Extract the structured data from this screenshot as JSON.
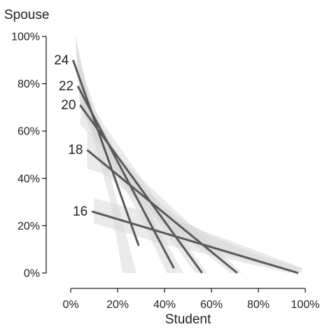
{
  "chart_data": {
    "type": "line",
    "title": "",
    "xlabel": "Student",
    "ylabel": "Spouse",
    "xlim": [
      0,
      100
    ],
    "ylim": [
      0,
      100
    ],
    "x_ticks": [
      "0%",
      "20%",
      "40%",
      "60%",
      "80%",
      "100%"
    ],
    "y_ticks": [
      "0%",
      "20%",
      "40%",
      "60%",
      "80%",
      "100%"
    ],
    "grid": false,
    "legend": "none",
    "series": [
      {
        "name": "24",
        "x": [
          1,
          29
        ],
        "y": [
          90,
          11.5
        ],
        "band": [
          [
            2,
            100
          ],
          [
            9,
            70
          ],
          [
            28,
            0
          ],
          [
            22,
            0
          ],
          [
            17,
            30
          ],
          [
            10,
            55
          ],
          [
            3,
            82
          ]
        ]
      },
      {
        "name": "22",
        "x": [
          3,
          44
        ],
        "y": [
          79,
          2
        ],
        "band": [
          [
            4,
            88
          ],
          [
            13,
            62
          ],
          [
            48,
            0
          ],
          [
            41,
            0
          ],
          [
            29,
            25
          ],
          [
            12,
            55
          ],
          [
            4,
            70
          ]
        ]
      },
      {
        "name": "20",
        "x": [
          4,
          56
        ],
        "y": [
          71,
          0
        ],
        "band": [
          [
            5,
            77
          ],
          [
            14,
            63
          ],
          [
            58,
            0
          ],
          [
            53,
            0
          ],
          [
            37,
            22
          ],
          [
            14,
            52
          ],
          [
            4,
            63
          ]
        ]
      },
      {
        "name": "18",
        "x": [
          7,
          71
        ],
        "y": [
          52,
          0
        ],
        "band": [
          [
            7,
            60
          ],
          [
            14,
            55
          ],
          [
            73,
            0
          ],
          [
            68,
            0
          ],
          [
            40,
            22
          ],
          [
            14,
            42
          ],
          [
            7,
            44
          ]
        ]
      },
      {
        "name": "16",
        "x": [
          9,
          97
        ],
        "y": [
          26,
          0
        ],
        "band": [
          [
            10,
            31.5
          ],
          [
            40,
            24
          ],
          [
            99,
            2
          ],
          [
            93,
            0
          ],
          [
            40,
            12
          ],
          [
            10,
            21
          ]
        ]
      }
    ],
    "curve_band": [
      [
        2,
        100
      ],
      [
        7,
        76
      ],
      [
        10,
        67
      ],
      [
        14,
        60
      ],
      [
        20,
        50
      ],
      [
        30,
        37
      ],
      [
        45,
        24
      ],
      [
        60,
        15.5
      ],
      [
        80,
        7.5
      ],
      [
        99,
        2
      ],
      [
        98,
        0
      ],
      [
        80,
        4
      ],
      [
        60,
        9.5
      ],
      [
        45,
        16.5
      ],
      [
        30,
        28
      ],
      [
        20,
        42
      ],
      [
        14,
        52
      ],
      [
        9,
        60
      ],
      [
        4,
        70
      ]
    ],
    "colors": {
      "line": "#5a5a5a",
      "band": "#d6d6d6",
      "axis": "#222222",
      "text": "#222222"
    }
  }
}
